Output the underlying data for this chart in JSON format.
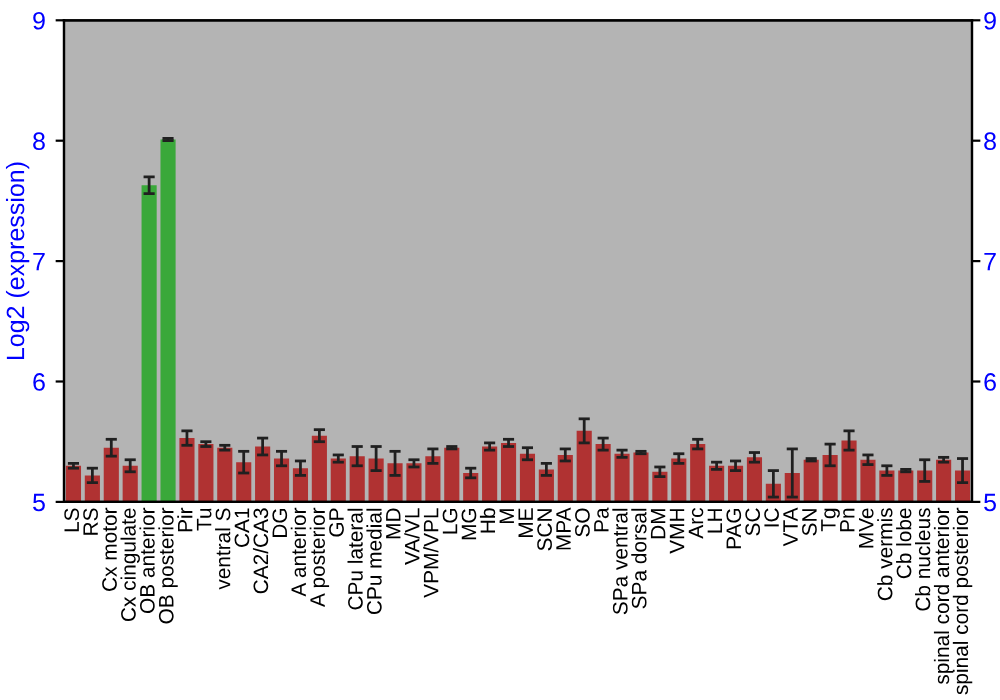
{
  "chart_data": {
    "type": "bar",
    "ylabel": "Log2 (expression)",
    "categories": [
      "LS",
      "RS",
      "Cx motor",
      "Cx cingulate",
      "OB anterior",
      "OB posterior",
      "Pir",
      "Tu",
      "ventral S",
      "CA1",
      "CA2/CA3",
      "DG",
      "A anterior",
      "A posterior",
      "GP",
      "CPu lateral",
      "CPu medial",
      "MD",
      "VA/VL",
      "VPM/VPL",
      "LG",
      "MG",
      "Hb",
      "M",
      "ME",
      "SCN",
      "MPA",
      "SO",
      "Pa",
      "SPa ventral",
      "SPa dorsal",
      "DM",
      "VMH",
      "Arc",
      "LH",
      "PAG",
      "SC",
      "IC",
      "VTA",
      "SN",
      "Tg",
      "Pn",
      "MVe",
      "Cb vermis",
      "Cb lobe",
      "Cb nucleus",
      "spinal cord anterior",
      "spinal cord posterior"
    ],
    "values": [
      5.3,
      5.22,
      5.45,
      5.3,
      7.63,
      8.01,
      5.53,
      5.48,
      5.45,
      5.33,
      5.46,
      5.36,
      5.28,
      5.55,
      5.36,
      5.38,
      5.36,
      5.32,
      5.32,
      5.38,
      5.45,
      5.24,
      5.46,
      5.49,
      5.4,
      5.27,
      5.39,
      5.59,
      5.48,
      5.4,
      5.41,
      5.25,
      5.36,
      5.48,
      5.3,
      5.3,
      5.37,
      5.15,
      5.24,
      5.35,
      5.39,
      5.51,
      5.35,
      5.26,
      5.26,
      5.26,
      5.35,
      5.26
    ],
    "errors": [
      0.02,
      0.06,
      0.07,
      0.05,
      0.07,
      0.01,
      0.06,
      0.02,
      0.02,
      0.09,
      0.07,
      0.06,
      0.06,
      0.05,
      0.03,
      0.08,
      0.1,
      0.1,
      0.03,
      0.06,
      0.01,
      0.04,
      0.03,
      0.03,
      0.05,
      0.05,
      0.05,
      0.1,
      0.05,
      0.03,
      0.01,
      0.04,
      0.04,
      0.04,
      0.03,
      0.04,
      0.04,
      0.11,
      0.2,
      0.01,
      0.09,
      0.08,
      0.04,
      0.04,
      0.01,
      0.09,
      0.02,
      0.1
    ],
    "colors": [
      "#b03232",
      "#b03232",
      "#b03232",
      "#b03232",
      "#3aa83a",
      "#3aa83a",
      "#b03232",
      "#b03232",
      "#b03232",
      "#b03232",
      "#b03232",
      "#b03232",
      "#b03232",
      "#b03232",
      "#b03232",
      "#b03232",
      "#b03232",
      "#b03232",
      "#b03232",
      "#b03232",
      "#b03232",
      "#b03232",
      "#b03232",
      "#b03232",
      "#b03232",
      "#b03232",
      "#b03232",
      "#b03232",
      "#b03232",
      "#b03232",
      "#b03232",
      "#b03232",
      "#b03232",
      "#b03232",
      "#b03232",
      "#b03232",
      "#b03232",
      "#b03232",
      "#b03232",
      "#b03232",
      "#b03232",
      "#b03232",
      "#b03232",
      "#b03232",
      "#b03232",
      "#b03232",
      "#b03232",
      "#b03232"
    ],
    "ylim": [
      5,
      9
    ],
    "yticks": [
      5,
      6,
      7,
      8,
      9
    ],
    "y2lim": [
      5,
      9
    ],
    "y2ticks": [
      5,
      6,
      7,
      8,
      9
    ],
    "grid": false,
    "legend": false
  }
}
